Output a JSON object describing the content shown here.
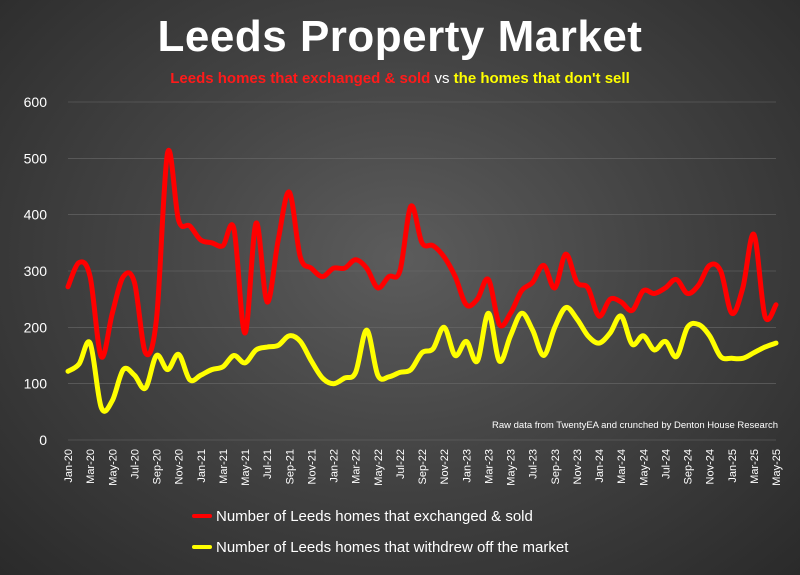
{
  "title": "Leeds Property Market",
  "subtitle": {
    "red_text": "Leeds homes that exchanged & sold",
    "vs_text": "vs",
    "yellow_text": "the homes that don't sell"
  },
  "source_note": "Raw data from TwentyEA and crunched by Denton House Research",
  "colors": {
    "sold": "#ff0000",
    "withdrawn": "#ffff00",
    "axis_text": "#ffffff",
    "grid": "#6a6a6a"
  },
  "chart_data": {
    "type": "line",
    "ylim": [
      0,
      600
    ],
    "yticks": [
      0,
      100,
      200,
      300,
      400,
      500,
      600
    ],
    "x_tick_labels": [
      "Jan-20",
      "Mar-20",
      "May-20",
      "Jul-20",
      "Sep-20",
      "Nov-20",
      "Jan-21",
      "Mar-21",
      "May-21",
      "Jul-21",
      "Sep-21",
      "Nov-21",
      "Jan-22",
      "Mar-22",
      "May-22",
      "Jul-22",
      "Sep-22",
      "Nov-22",
      "Jan-23",
      "Mar-23",
      "May-23",
      "Jul-23",
      "Sep-23",
      "Nov-23",
      "Jan-24",
      "Mar-24",
      "May-24",
      "Jul-24",
      "Sep-24",
      "Nov-24",
      "Jan-25",
      "Mar-25",
      "May-25"
    ],
    "x": [
      "Jan-20",
      "Feb-20",
      "Mar-20",
      "Apr-20",
      "May-20",
      "Jun-20",
      "Jul-20",
      "Aug-20",
      "Sep-20",
      "Oct-20",
      "Nov-20",
      "Dec-20",
      "Jan-21",
      "Feb-21",
      "Mar-21",
      "Apr-21",
      "May-21",
      "Jun-21",
      "Jul-21",
      "Aug-21",
      "Sep-21",
      "Oct-21",
      "Nov-21",
      "Dec-21",
      "Jan-22",
      "Feb-22",
      "Mar-22",
      "Apr-22",
      "May-22",
      "Jun-22",
      "Jul-22",
      "Aug-22",
      "Sep-22",
      "Oct-22",
      "Nov-22",
      "Dec-22",
      "Jan-23",
      "Feb-23",
      "Mar-23",
      "Apr-23",
      "May-23",
      "Jun-23",
      "Jul-23",
      "Aug-23",
      "Sep-23",
      "Oct-23",
      "Nov-23",
      "Dec-23",
      "Jan-24",
      "Feb-24",
      "Mar-24",
      "Apr-24",
      "May-24",
      "Jun-24",
      "Jul-24",
      "Aug-24",
      "Sep-24",
      "Oct-24",
      "Nov-24",
      "Dec-24",
      "Jan-25",
      "Feb-25",
      "Mar-25",
      "Apr-25",
      "May-25"
    ],
    "series": [
      {
        "name": "Number of Leeds homes that exchanged & sold",
        "color": "#ff0000",
        "values": [
          272,
          315,
          290,
          148,
          225,
          290,
          280,
          155,
          215,
          510,
          390,
          380,
          355,
          350,
          345,
          375,
          190,
          385,
          245,
          355,
          440,
          325,
          305,
          290,
          305,
          305,
          320,
          305,
          270,
          290,
          300,
          415,
          350,
          345,
          325,
          290,
          240,
          250,
          285,
          205,
          225,
          265,
          280,
          310,
          270,
          330,
          280,
          270,
          220,
          250,
          245,
          230,
          265,
          260,
          270,
          285,
          260,
          275,
          310,
          300,
          225,
          270,
          365,
          220,
          240
        ]
      },
      {
        "name": "Number of Leeds homes that withdrew off the market",
        "color": "#ffff00",
        "values": [
          122,
          135,
          172,
          58,
          70,
          125,
          115,
          92,
          150,
          125,
          152,
          107,
          115,
          125,
          130,
          150,
          137,
          160,
          165,
          168,
          185,
          175,
          140,
          110,
          100,
          110,
          120,
          195,
          115,
          112,
          120,
          125,
          155,
          162,
          200,
          150,
          175,
          140,
          225,
          140,
          185,
          225,
          195,
          150,
          200,
          235,
          215,
          185,
          172,
          190,
          220,
          170,
          185,
          160,
          175,
          148,
          200,
          205,
          185,
          148,
          145,
          145,
          155,
          165,
          172
        ]
      }
    ]
  }
}
